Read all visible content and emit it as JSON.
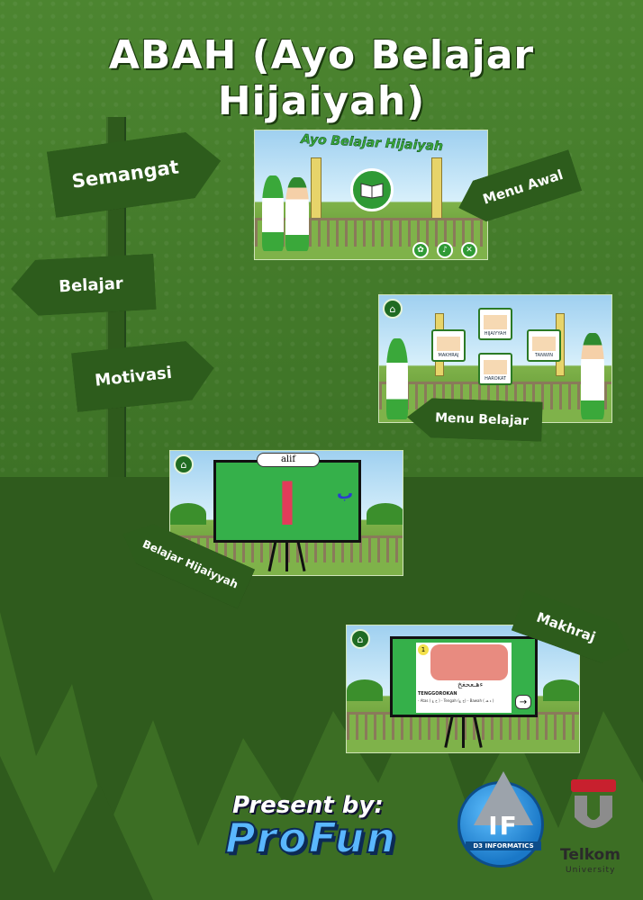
{
  "title": "ABAH (Ayo Belajar Hijaiyah)",
  "signs": {
    "semangat": "Semangat",
    "belajar": "Belajar",
    "motivasi": "Motivasi",
    "menu_awal": "Menu Awal",
    "menu_belajar": "Menu Belajar",
    "belajar_hijaiyah": "Belajar Hijaiyyah",
    "makhraj": "Makhraj"
  },
  "screenshots": {
    "menu_awal": {
      "banner": "Ayo Belajar Hijaiyah",
      "buttons": [
        "people-icon",
        "music-icon",
        "close-icon"
      ]
    },
    "menu_belajar": {
      "tiles": [
        "HIJAIYYAH",
        "MAKHRAJ",
        "TANWIN",
        "HAROKAT"
      ]
    },
    "hijaiyah": {
      "caption": "alif",
      "letter": "ا",
      "next_letter": "ب"
    },
    "makhraj": {
      "number": "1",
      "heading": "TENGGOROKAN",
      "letters": "ءهـعحغخ",
      "detail": "- Atas ( خ غ ) - Tengah (ح ع) - Bawah ( ء هـ )"
    }
  },
  "footer": {
    "present_by": "Present by:",
    "brand": "ProFun",
    "d3_logo": "IF",
    "d3_label": "D3 INFORMATICS",
    "telkom": "Telkom",
    "university": "University"
  },
  "colors": {
    "background_top": "#4c8530",
    "background_bottom": "#2f5b1d",
    "sign": "#2d5c1c",
    "board": "#35b04a"
  }
}
